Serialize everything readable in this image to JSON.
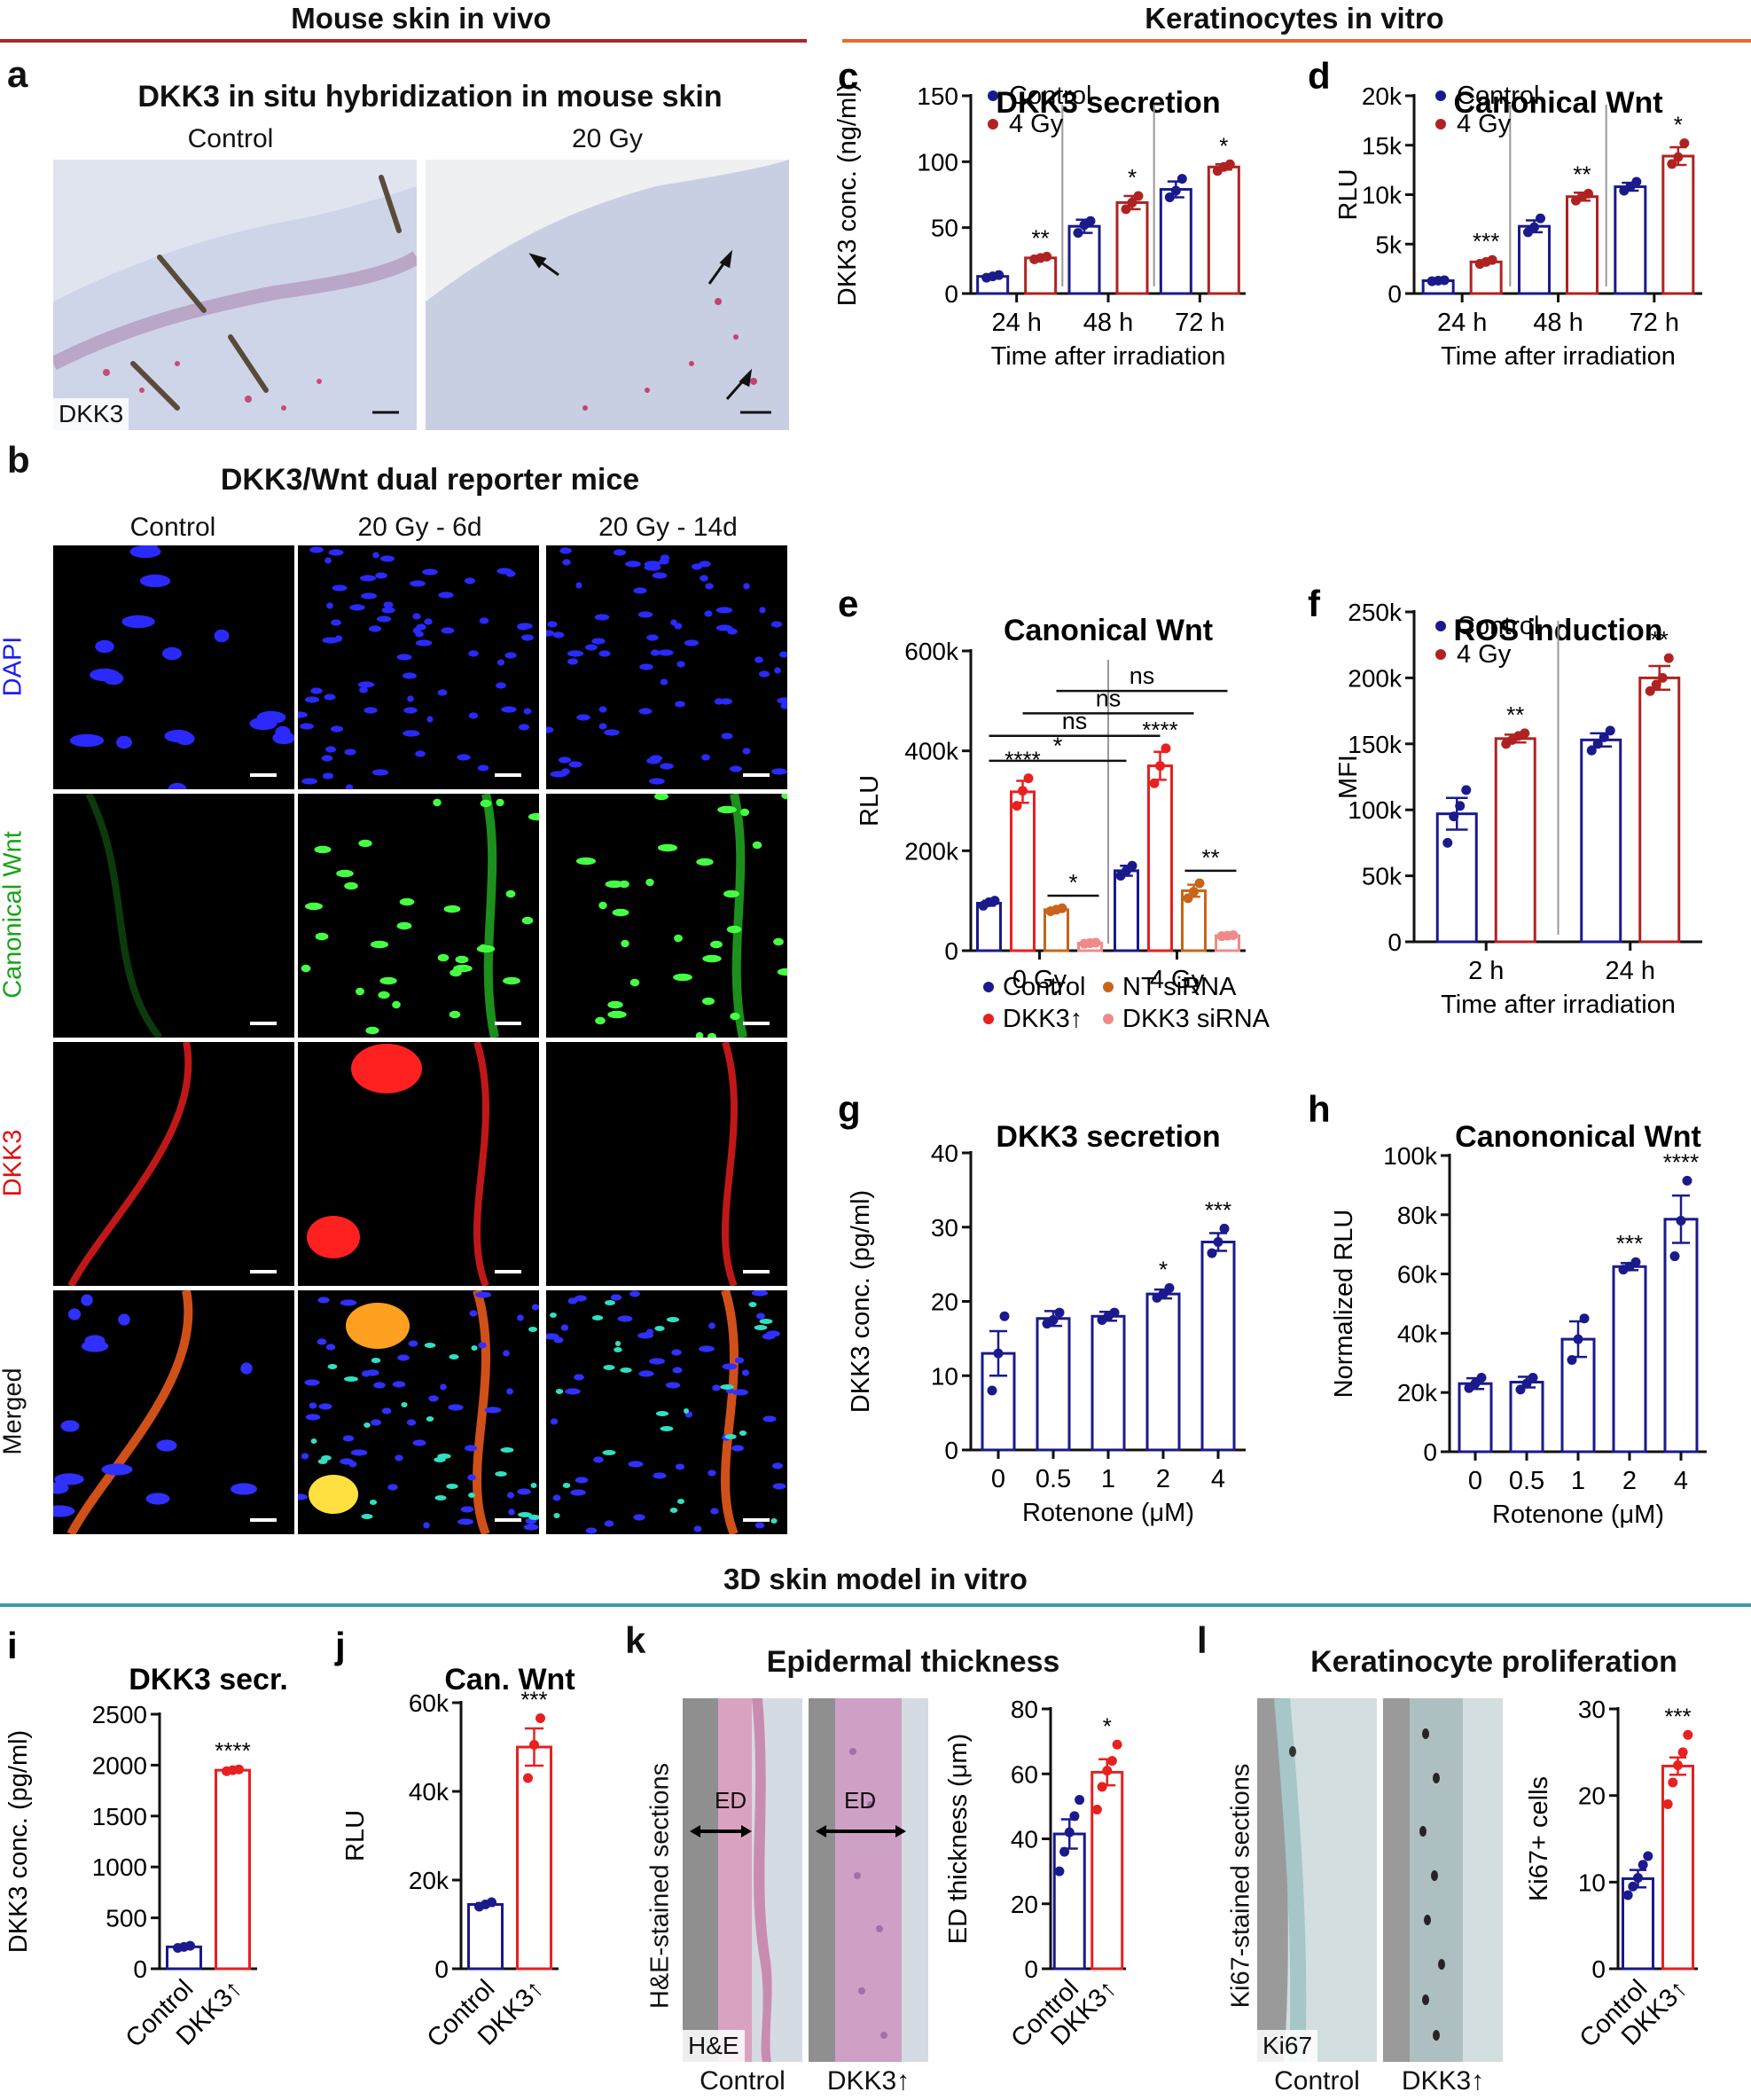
{
  "headers": {
    "mouse_in_vivo": "Mouse skin in vivo",
    "keratinocytes_in_vitro": "Keratinocytes in vitro",
    "skin_model_3d": "3D skin model in vitro",
    "colors": {
      "mouse": "#a52a2a",
      "kera": "#e86a2c",
      "model3d": "#3a9ca6"
    }
  },
  "panel_a": {
    "label": "a",
    "title": "DKK3 in situ hybridization in mouse skin",
    "col_control": "Control",
    "col_irr": "20 Gy",
    "tag": "DKK3"
  },
  "panel_b": {
    "label": "b",
    "title": "DKK3/Wnt dual reporter mice",
    "cols": [
      "Control",
      "20 Gy - 6d",
      "20 Gy - 14d"
    ],
    "rows": [
      {
        "name": "DAPI",
        "color": "#1c1cf0"
      },
      {
        "name": "Canonical Wnt",
        "color": "#1aa31a"
      },
      {
        "name": "DKK3",
        "color": "#e01010"
      },
      {
        "name": "Merged",
        "color": "#111111"
      }
    ]
  },
  "panel_k": {
    "label": "k",
    "title": "Epidermal thickness",
    "side_label": "H&E-stained sections",
    "tag": "H&E",
    "ed_label": "ED",
    "col_control": "Control",
    "col_dkk3": "DKK3↑"
  },
  "panel_l": {
    "label": "l",
    "title": "Keratinocyte proliferation",
    "side_label": "Ki67-stained sections",
    "tag": "Ki67",
    "col_control": "Control",
    "col_dkk3": "DKK3↑"
  },
  "chart_data": [
    {
      "id": "c",
      "label": "c",
      "type": "bar",
      "title": "DKK3  secretion",
      "ylabel": "DKK3 conc. (ng/ml)",
      "xlabel": "Time after irradiation",
      "ylim": [
        0,
        150
      ],
      "yticks": [
        "0",
        "50",
        "100",
        "150"
      ],
      "ytick_values": [
        0,
        50,
        100,
        150
      ],
      "categories": [
        "24 h",
        "48 h",
        "72 h"
      ],
      "legend": [
        "Control",
        "4 Gy"
      ],
      "series": [
        {
          "name": "Control",
          "color": "#1a1a8c",
          "values": [
            13,
            51,
            79
          ],
          "err": [
            1,
            5,
            6
          ],
          "points": [
            [
              12,
              13,
              14
            ],
            [
              46,
              52,
              55
            ],
            [
              73,
              78,
              87
            ]
          ]
        },
        {
          "name": "4 Gy",
          "color": "#b02222",
          "values": [
            27,
            69,
            96
          ],
          "err": [
            1,
            5,
            2
          ],
          "points": [
            [
              26,
              27,
              28
            ],
            [
              64,
              69,
              74
            ],
            [
              93,
              96,
              98
            ]
          ]
        }
      ],
      "sig": [
        "**",
        "*",
        "*"
      ]
    },
    {
      "id": "d",
      "label": "d",
      "type": "bar",
      "title": "Canonical Wnt",
      "ylabel": "RLU",
      "xlabel": "Time after irradiation",
      "ylim": [
        0,
        20000
      ],
      "yticks": [
        "0",
        "5k",
        "10k",
        "15k",
        "20k"
      ],
      "ytick_values": [
        0,
        5000,
        10000,
        15000,
        20000
      ],
      "categories": [
        "24 h",
        "48 h",
        "72 h"
      ],
      "legend": [
        "Control",
        "4 Gy"
      ],
      "series": [
        {
          "name": "Control",
          "color": "#1a1a8c",
          "values": [
            1300,
            6800,
            10800
          ],
          "err": [
            80,
            600,
            400
          ],
          "points": [
            [
              1250,
              1300,
              1350
            ],
            [
              6200,
              6700,
              7600
            ],
            [
              10400,
              10800,
              11300
            ]
          ]
        },
        {
          "name": "4 Gy",
          "color": "#b02222",
          "values": [
            3200,
            9800,
            13900
          ],
          "err": [
            150,
            400,
            900
          ],
          "points": [
            [
              3000,
              3200,
              3400
            ],
            [
              9400,
              9800,
              10100
            ],
            [
              13100,
              13800,
              15200
            ]
          ]
        }
      ],
      "sig": [
        "***",
        "**",
        "*"
      ]
    },
    {
      "id": "e",
      "label": "e",
      "type": "bar",
      "title": "Canonical Wnt",
      "ylabel": "RLU",
      "ylim": [
        0,
        600000
      ],
      "yticks": [
        "0",
        "200k",
        "400k",
        "600k"
      ],
      "ytick_values": [
        0,
        200000,
        400000,
        600000
      ],
      "categories": [
        "0 Gy",
        "4 Gy"
      ],
      "legend": [
        "Control",
        "DKK3↑",
        "NT siRNA",
        "DKK3 siRNA"
      ],
      "series": [
        {
          "name": "Control",
          "color": "#1a1a8c",
          "values": [
            95000,
            160000
          ],
          "err": [
            5000,
            10000
          ],
          "points": [
            [
              90000,
              97000,
              100000
            ],
            [
              150000,
              160000,
              170000
            ]
          ]
        },
        {
          "name": "DKK3↑",
          "color": "#e82020",
          "values": [
            318000,
            370000
          ],
          "err": [
            22000,
            28000
          ],
          "points": [
            [
              290000,
              320000,
              345000
            ],
            [
              335000,
              370000,
              405000
            ]
          ]
        },
        {
          "name": "NT siRNA",
          "color": "#c8651a",
          "values": [
            82000,
            120000
          ],
          "err": [
            3000,
            12000
          ],
          "points": [
            [
              79000,
              82000,
              85000
            ],
            [
              105000,
              118000,
              135000
            ]
          ]
        },
        {
          "name": "DKK3 siRNA",
          "color": "#f08a8a",
          "values": [
            15000,
            30000
          ],
          "err": [
            1000,
            1500
          ],
          "points": [
            [
              14000,
              15000,
              16000
            ],
            [
              29000,
              30000,
              31000
            ]
          ]
        }
      ],
      "sig_over": [
        "****",
        "****"
      ],
      "sig_sirna": [
        "*",
        "**"
      ],
      "brackets": [
        "ns",
        "ns",
        "ns",
        "*"
      ]
    },
    {
      "id": "f",
      "label": "f",
      "type": "bar",
      "title": "ROS induction",
      "ylabel": "MFI",
      "xlabel": "Time after irradiation",
      "ylim": [
        0,
        250000
      ],
      "yticks": [
        "0",
        "50k",
        "100k",
        "150k",
        "200k",
        "250k"
      ],
      "ytick_values": [
        0,
        50000,
        100000,
        150000,
        200000,
        250000
      ],
      "categories": [
        "2 h",
        "24 h"
      ],
      "legend": [
        "Control",
        "4 Gy"
      ],
      "series": [
        {
          "name": "Control",
          "color": "#1a1a8c",
          "values": [
            97000,
            153000
          ],
          "err": [
            12000,
            5000
          ],
          "points": [
            [
              75000,
              95000,
              103000,
              115000
            ],
            [
              145000,
              150000,
              155000,
              160000
            ]
          ]
        },
        {
          "name": "4 Gy",
          "color": "#b02222",
          "values": [
            154000,
            200000
          ],
          "err": [
            3000,
            9000
          ],
          "points": [
            [
              150000,
              153000,
              156000,
              158000
            ],
            [
              190000,
              195000,
              200000,
              215000
            ]
          ]
        }
      ],
      "sig": [
        "**",
        "**"
      ]
    },
    {
      "id": "g",
      "label": "g",
      "type": "bar",
      "title": "DKK3 secretion",
      "ylabel": "DKK3 conc. (pg/ml)",
      "xlabel": "Rotenone (μM)",
      "ylim": [
        0,
        40
      ],
      "yticks": [
        "0",
        "10",
        "20",
        "30",
        "40"
      ],
      "ytick_values": [
        0,
        10,
        20,
        30,
        40
      ],
      "categories": [
        "0",
        "0.5",
        "1",
        "2",
        "4"
      ],
      "series": [
        {
          "name": "Rotenone",
          "color": "#1a1a8c",
          "values": [
            13,
            17.7,
            18,
            21,
            28
          ],
          "err": [
            3,
            1,
            0.6,
            0.6,
            1.2
          ],
          "points": [
            [
              8,
              13,
              18
            ],
            [
              17,
              17.5,
              18.5
            ],
            [
              17.5,
              18,
              18.5
            ],
            [
              20.5,
              21,
              21.8
            ],
            [
              26.5,
              28,
              29.8
            ]
          ]
        }
      ],
      "sig": [
        "",
        "",
        "",
        "*",
        "***"
      ]
    },
    {
      "id": "h",
      "label": "h",
      "type": "bar",
      "title": "Canononical Wnt",
      "ylabel": "Normalized RLU",
      "xlabel": "Rotenone (μM)",
      "ylim": [
        0,
        100000
      ],
      "yticks": [
        "0",
        "20k",
        "40k",
        "60k",
        "80k",
        "100k"
      ],
      "ytick_values": [
        0,
        20000,
        40000,
        60000,
        80000,
        100000
      ],
      "categories": [
        "0",
        "0.5",
        "1",
        "2",
        "4"
      ],
      "series": [
        {
          "name": "Rotenone",
          "color": "#1a1a8c",
          "values": [
            23000,
            23500,
            38000,
            62500,
            78500
          ],
          "err": [
            1800,
            1800,
            6000,
            1200,
            8000
          ],
          "points": [
            [
              21500,
              23000,
              25000
            ],
            [
              21000,
              23000,
              25000
            ],
            [
              31000,
              38000,
              45000
            ],
            [
              61500,
              62500,
              64000
            ],
            [
              66000,
              78000,
              91500
            ]
          ]
        }
      ],
      "sig": [
        "",
        "",
        "",
        "***",
        "****"
      ]
    },
    {
      "id": "i",
      "label": "i",
      "type": "bar",
      "title": "DKK3 secr.",
      "ylabel": "DKK3 conc. (pg/ml)",
      "ylim": [
        0,
        2500
      ],
      "yticks": [
        "0",
        "500",
        "1000",
        "1500",
        "2000",
        "2500"
      ],
      "ytick_values": [
        0,
        500,
        1000,
        1500,
        2000,
        2500
      ],
      "categories": [
        "Control",
        "DKK3↑"
      ],
      "series": [
        {
          "name": "Groups",
          "colors": [
            "#1a1a8c",
            "#e82020"
          ],
          "values": [
            215,
            1950
          ],
          "err": [
            10,
            10
          ],
          "points": [
            [
              205,
              215,
              225
            ],
            [
              1940,
              1950,
              1958
            ]
          ]
        }
      ],
      "sig": [
        "",
        "****"
      ]
    },
    {
      "id": "j",
      "label": "j",
      "type": "bar",
      "title": "Can. Wnt",
      "ylabel": "RLU",
      "ylim": [
        0,
        60000
      ],
      "yticks": [
        "0",
        "20k",
        "40k",
        "60k"
      ],
      "ytick_values": [
        0,
        20000,
        40000,
        60000
      ],
      "categories": [
        "Control",
        "DKK3↑"
      ],
      "series": [
        {
          "name": "Groups",
          "colors": [
            "#1a1a8c",
            "#e82020"
          ],
          "values": [
            14500,
            50000
          ],
          "err": [
            300,
            4200
          ],
          "points": [
            [
              14000,
              14500,
              15000
            ],
            [
              43000,
              50500,
              56500
            ]
          ]
        }
      ],
      "sig": [
        "",
        "***"
      ]
    },
    {
      "id": "k2",
      "label": "",
      "type": "bar",
      "title": "",
      "ylabel": "ED thickness (μm)",
      "ylim": [
        0,
        80
      ],
      "yticks": [
        "0",
        "20",
        "40",
        "60",
        "80"
      ],
      "ytick_values": [
        0,
        20,
        40,
        60,
        80
      ],
      "categories": [
        "Control",
        "DKK3↑"
      ],
      "series": [
        {
          "name": "Groups",
          "colors": [
            "#1a1a8c",
            "#e82020"
          ],
          "values": [
            41.5,
            60.5
          ],
          "err": [
            4.5,
            4
          ],
          "points": [
            [
              30,
              36,
              42,
              47,
              52
            ],
            [
              49,
              56,
              61,
              64,
              69
            ]
          ]
        }
      ],
      "sig": [
        "",
        "*"
      ]
    },
    {
      "id": "l2",
      "label": "",
      "type": "bar",
      "title": "",
      "ylabel": "Ki67+ cells",
      "ylim": [
        0,
        30
      ],
      "yticks": [
        "0",
        "10",
        "20",
        "30"
      ],
      "ytick_values": [
        0,
        10,
        20,
        30
      ],
      "categories": [
        "Control",
        "DKK3↑"
      ],
      "series": [
        {
          "name": "Groups",
          "colors": [
            "#1a1a8c",
            "#e82020"
          ],
          "values": [
            10.4,
            23.4
          ],
          "err": [
            1,
            1
          ],
          "points": [
            [
              8.5,
              9.5,
              10.5,
              12,
              13
            ],
            [
              19,
              21.5,
              23.5,
              25,
              27
            ]
          ]
        }
      ],
      "sig": [
        "",
        "***"
      ]
    }
  ]
}
